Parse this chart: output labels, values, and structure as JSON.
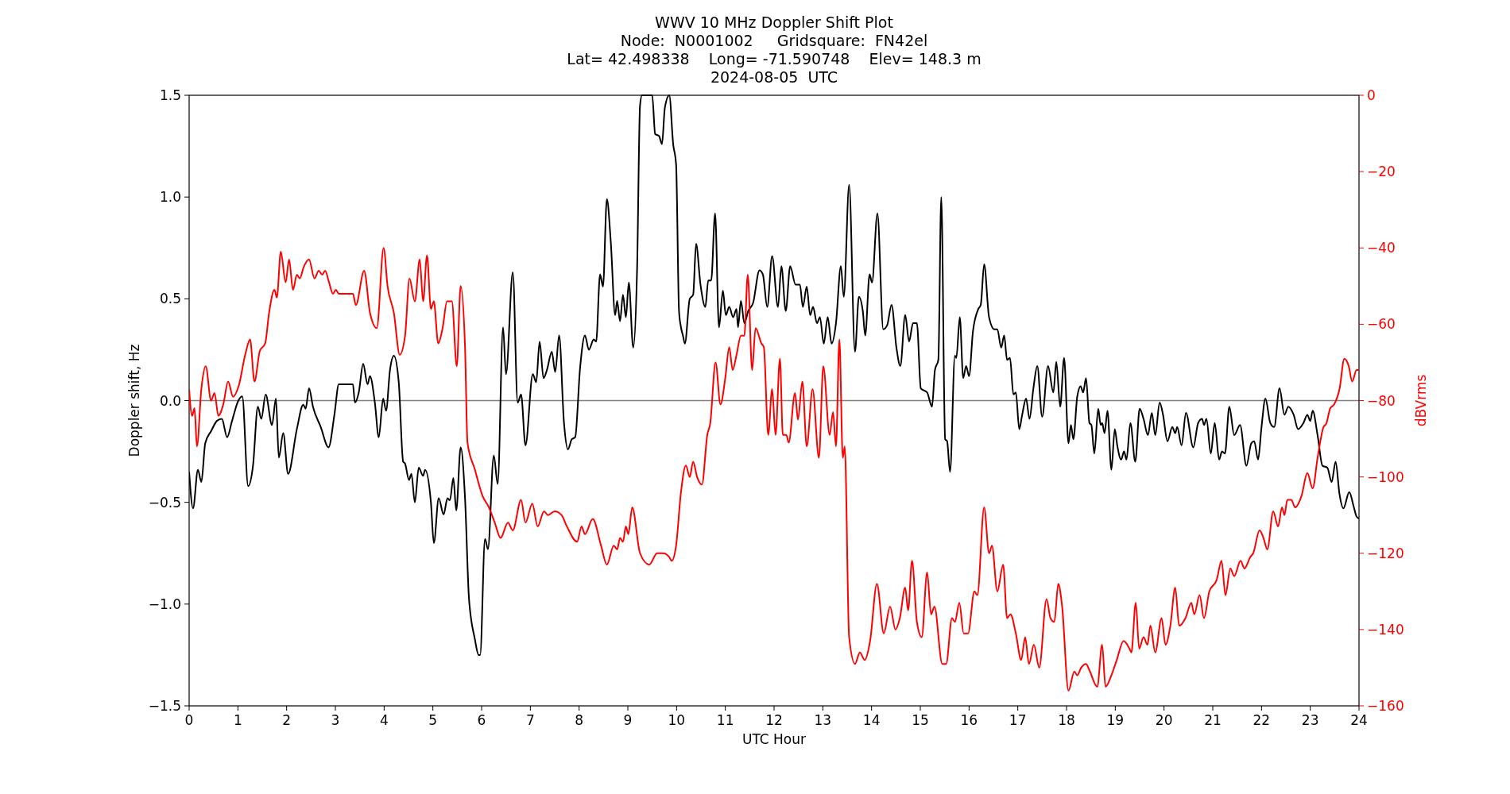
{
  "chart_data": {
    "type": "line",
    "title": "WWV 10 MHz Doppler Shift Plot",
    "subtitle": [
      "Node:  N0001002     Gridsquare:  FN42el",
      "Lat= 42.498338    Long= -71.590748    Elev= 148.3 m",
      "2024-08-05  UTC"
    ],
    "xlabel": "UTC Hour",
    "ylabel": "Doppler shift, Hz",
    "y2label": "dBVrms",
    "xlim": [
      0,
      24
    ],
    "xticks": [
      0,
      1,
      2,
      3,
      4,
      5,
      6,
      7,
      8,
      9,
      10,
      11,
      12,
      13,
      14,
      15,
      16,
      17,
      18,
      19,
      20,
      21,
      22,
      23,
      24
    ],
    "ylim": [
      -1.5,
      1.5
    ],
    "yticks": [
      {
        "value": -1.5,
        "label": "−1.5"
      },
      {
        "value": -1.0,
        "label": "−1.0"
      },
      {
        "value": -0.5,
        "label": "−0.5"
      },
      {
        "value": 0,
        "label": "0.0"
      },
      {
        "value": 0.5,
        "label": "0.5"
      },
      {
        "value": 1.0,
        "label": "1.0"
      },
      {
        "value": 1.5,
        "label": "1.5"
      }
    ],
    "y2lim": [
      -160,
      0
    ],
    "y2ticks": [
      -160,
      -140,
      -120,
      -100,
      -80,
      -60,
      -40,
      -20,
      0
    ],
    "grid": false,
    "ref_lines": [
      {
        "axis": "y",
        "value": 0,
        "color": "#808080"
      }
    ],
    "series": [
      {
        "color": "#000000",
        "x": [
          0,
          0.08,
          0.18,
          0.25,
          0.33,
          0.45,
          0.57,
          0.67,
          0.78,
          0.88,
          1.01,
          1.09,
          1.21,
          1.31,
          1.41,
          1.48,
          1.57,
          1.7,
          1.78,
          1.84,
          1.93,
          2.03,
          2.21,
          2.34,
          2.39,
          2.46,
          2.54,
          2.7,
          2.86,
          2.98,
          3.07,
          3.36,
          3.4,
          3.48,
          3.57,
          3.66,
          3.71,
          3.81,
          3.89,
          3.98,
          4.04,
          4.12,
          4.2,
          4.3,
          4.39,
          4.43,
          4.51,
          4.56,
          4.63,
          4.71,
          4.8,
          4.84,
          4.96,
          5.02,
          5.12,
          5.22,
          5.3,
          5.35,
          5.42,
          5.48,
          5.57,
          5.66,
          5.74,
          5.86,
          5.94,
          5.97,
          6.07,
          6.13,
          6.25,
          6.33,
          6.44,
          6.5,
          6.64,
          6.74,
          6.81,
          6.9,
          7.05,
          7.12,
          7.19,
          7.27,
          7.34,
          7.44,
          7.51,
          7.59,
          7.69,
          7.77,
          7.85,
          7.92,
          8.02,
          8.12,
          8.2,
          8.3,
          8.35,
          8.43,
          8.49,
          8.57,
          8.65,
          8.74,
          8.78,
          8.84,
          8.9,
          8.96,
          9.02,
          9.11,
          9.19,
          9.25,
          9.29,
          9.5,
          9.56,
          9.64,
          9.7,
          9.76,
          9.85,
          9.93,
          9.99,
          10.05,
          10.09,
          10.13,
          10.17,
          10.27,
          10.34,
          10.4,
          10.49,
          10.59,
          10.65,
          10.71,
          10.79,
          10.87,
          10.95,
          11.01,
          11.08,
          11.16,
          11.23,
          11.26,
          11.32,
          11.39,
          11.47,
          11.57,
          11.7,
          11.77,
          11.86,
          11.96,
          12.08,
          12.15,
          12.24,
          12.33,
          12.44,
          12.53,
          12.59,
          12.67,
          12.74,
          12.8,
          12.88,
          12.94,
          13.02,
          13.1,
          13.18,
          13.27,
          13.37,
          13.43,
          13.54,
          13.66,
          13.74,
          13.82,
          13.87,
          13.96,
          14.01,
          14.12,
          14.24,
          14.32,
          14.41,
          14.51,
          14.59,
          14.69,
          14.77,
          14.85,
          14.93,
          15.01,
          15.14,
          15.24,
          15.3,
          15.37,
          15.43,
          15.51,
          15.55,
          15.61,
          15.71,
          15.74,
          15.81,
          15.88,
          15.94,
          16,
          16.08,
          16.19,
          16.24,
          16.31,
          16.41,
          16.52,
          16.58,
          16.66,
          16.72,
          16.78,
          16.84,
          16.91,
          16.96,
          17.03,
          17.09,
          17.17,
          17.24,
          17.32,
          17.4,
          17.5,
          17.62,
          17.73,
          17.79,
          17.87,
          17.95,
          18.04,
          18.09,
          18.14,
          18.22,
          18.29,
          18.34,
          18.4,
          18.47,
          18.51,
          18.57,
          18.65,
          18.7,
          18.73,
          18.78,
          18.84,
          18.92,
          18.99,
          19.04,
          19.12,
          19.18,
          19.23,
          19.31,
          19.41,
          19.5,
          19.58,
          19.67,
          19.75,
          19.82,
          19.91,
          19.98,
          20.07,
          20.17,
          20.23,
          20.27,
          20.36,
          20.45,
          20.6,
          20.7,
          20.78,
          20.82,
          20.87,
          20.96,
          21.04,
          21.13,
          21.19,
          21.25,
          21.34,
          21.44,
          21.56,
          21.69,
          21.79,
          21.85,
          21.93,
          22,
          22.08,
          22.18,
          22.26,
          22.37,
          22.47,
          22.55,
          22.66,
          22.75,
          22.86,
          22.94,
          23,
          23.05,
          23.15,
          23.25,
          23.35,
          23.44,
          23.52,
          23.6,
          23.68,
          23.8,
          23.89,
          23.95,
          24
        ],
        "values": [
          -0.35,
          -0.53,
          -0.34,
          -0.4,
          -0.21,
          -0.15,
          -0.1,
          -0.09,
          -0.18,
          -0.1,
          0,
          0.02,
          -0.42,
          -0.32,
          -0.03,
          -0.09,
          0.03,
          -0.12,
          0.01,
          -0.28,
          -0.16,
          -0.36,
          -0.14,
          -0.02,
          -0.04,
          0.06,
          -0.03,
          -0.13,
          -0.23,
          -0.07,
          0.08,
          0.08,
          -0.01,
          0.04,
          0.18,
          0.08,
          0.12,
          -0.01,
          -0.18,
          0.01,
          -0.05,
          0.15,
          0.22,
          0.09,
          -0.3,
          -0.31,
          -0.39,
          -0.36,
          -0.5,
          -0.33,
          -0.37,
          -0.34,
          -0.5,
          -0.7,
          -0.48,
          -0.56,
          -0.48,
          -0.49,
          -0.38,
          -0.54,
          -0.23,
          -0.48,
          -0.97,
          -1.17,
          -1.25,
          -1.25,
          -0.68,
          -0.73,
          -0.27,
          -0.41,
          0.36,
          0.13,
          0.63,
          -0.01,
          0.03,
          -0.22,
          0.13,
          0.09,
          0.29,
          0.11,
          0.15,
          0.24,
          0.14,
          0.32,
          -0.11,
          -0.24,
          -0.19,
          -0.18,
          0.16,
          0.32,
          0.25,
          0.3,
          0.29,
          0.62,
          0.56,
          0.99,
          0.78,
          0.42,
          0.49,
          0.39,
          0.52,
          0.41,
          0.58,
          0.26,
          0.65,
          1.45,
          1.5,
          1.5,
          1.31,
          1.3,
          1.26,
          1.44,
          1.5,
          1.26,
          1.16,
          0.44,
          0.36,
          0.32,
          0.28,
          0.5,
          0.52,
          0.77,
          0.57,
          0.46,
          0.59,
          0.59,
          0.92,
          0.36,
          0.54,
          0.42,
          0.46,
          0.41,
          0.45,
          0.36,
          0.49,
          0.38,
          0.44,
          0.48,
          0.64,
          0.62,
          0.46,
          0.71,
          0.46,
          0.66,
          0.44,
          0.66,
          0.57,
          0.57,
          0.46,
          0.56,
          0.42,
          0.46,
          0.38,
          0.41,
          0.28,
          0.41,
          0.28,
          0.38,
          0.66,
          0.51,
          1.06,
          0.24,
          0.51,
          0.44,
          0.32,
          0.62,
          0.58,
          0.92,
          0.35,
          0.37,
          0.47,
          0.26,
          0.17,
          0.42,
          0.29,
          0.38,
          0.38,
          0.06,
          0.04,
          -0.03,
          0.15,
          0.2,
          1.0,
          -0.19,
          -0.2,
          -0.35,
          0.22,
          0.21,
          0.41,
          0.11,
          0.17,
          0.12,
          0.34,
          0.45,
          0.47,
          0.67,
          0.41,
          0.35,
          0.35,
          0.26,
          0.32,
          0.2,
          0.21,
          0.03,
          0.04,
          -0.14,
          -0.07,
          0.01,
          -0.09,
          0.06,
          0.17,
          -0.08,
          0.17,
          0.04,
          0.19,
          -0.03,
          0.21,
          -0.21,
          -0.12,
          -0.19,
          0.02,
          0.07,
          0.04,
          0.11,
          -0.11,
          -0.12,
          -0.26,
          -0.04,
          -0.12,
          -0.11,
          -0.16,
          -0.05,
          -0.34,
          -0.14,
          -0.22,
          -0.29,
          -0.25,
          -0.29,
          -0.11,
          -0.3,
          -0.04,
          -0.09,
          -0.17,
          -0.06,
          -0.17,
          -0.01,
          -0.07,
          -0.2,
          -0.13,
          -0.16,
          -0.13,
          -0.22,
          -0.06,
          -0.23,
          -0.11,
          -0.09,
          -0.12,
          -0.09,
          -0.26,
          -0.11,
          -0.29,
          -0.25,
          -0.26,
          -0.03,
          -0.17,
          -0.12,
          -0.32,
          -0.21,
          -0.2,
          -0.29,
          -0.13,
          0.01,
          -0.11,
          -0.13,
          0.06,
          -0.07,
          -0.03,
          -0.07,
          -0.14,
          -0.11,
          -0.07,
          -0.1,
          -0.05,
          -0.17,
          -0.32,
          -0.33,
          -0.4,
          -0.3,
          -0.46,
          -0.53,
          -0.45,
          -0.52,
          -0.57,
          -0.58
        ]
      },
      {
        "color": "#ff0000",
        "axis": "y2",
        "x": [
          0,
          0.06,
          0.11,
          0.16,
          0.25,
          0.34,
          0.45,
          0.52,
          0.6,
          0.7,
          0.8,
          0.9,
          1.02,
          1.15,
          1.25,
          1.34,
          1.45,
          1.56,
          1.64,
          1.75,
          1.8,
          1.88,
          1.98,
          2.05,
          2.13,
          2.21,
          2.27,
          2.35,
          2.46,
          2.57,
          2.66,
          2.73,
          2.79,
          2.87,
          2.95,
          3.01,
          3.07,
          3.36,
          3.42,
          3.59,
          3.71,
          3.85,
          3.99,
          4.07,
          4.2,
          4.32,
          4.43,
          4.52,
          4.63,
          4.73,
          4.8,
          4.88,
          4.96,
          5.02,
          5.11,
          5.2,
          5.29,
          5.35,
          5.39,
          5.49,
          5.57,
          5.66,
          5.71,
          5.86,
          6.02,
          6.15,
          6.27,
          6.39,
          6.54,
          6.64,
          6.81,
          6.9,
          7.04,
          7.15,
          7.28,
          7.36,
          7.5,
          7.64,
          7.75,
          7.96,
          8.05,
          8.12,
          8.28,
          8.45,
          8.57,
          8.71,
          8.78,
          8.84,
          8.9,
          8.96,
          9.01,
          9.09,
          9.25,
          9.44,
          9.6,
          9.72,
          9.85,
          9.9,
          9.99,
          10.09,
          10.19,
          10.27,
          10.34,
          10.42,
          10.52,
          10.63,
          10.69,
          10.8,
          10.9,
          11,
          11.08,
          11.15,
          11.23,
          11.32,
          11.39,
          11.46,
          11.55,
          11.62,
          11.74,
          11.79,
          11.88,
          11.96,
          12.03,
          12.12,
          12.18,
          12.25,
          12.3,
          12.43,
          12.49,
          12.58,
          12.67,
          12.79,
          12.92,
          13.01,
          13.14,
          13.21,
          13.27,
          13.34,
          13.41,
          13.45,
          13.54,
          13.66,
          13.76,
          13.86,
          13.97,
          14.11,
          14.25,
          14.38,
          14.49,
          14.58,
          14.69,
          14.75,
          14.83,
          14.93,
          15.03,
          15.14,
          15.22,
          15.29,
          15.45,
          15.53,
          15.65,
          15.71,
          15.8,
          15.89,
          15.98,
          16.11,
          16.17,
          16.31,
          16.41,
          16.47,
          16.58,
          16.7,
          16.78,
          16.85,
          16.96,
          17.07,
          17.15,
          17.23,
          17.33,
          17.44,
          17.59,
          17.67,
          17.75,
          17.83,
          17.91,
          18.04,
          18.16,
          18.22,
          18.3,
          18.4,
          18.48,
          18.63,
          18.73,
          18.8,
          18.92,
          19.03,
          19.17,
          19.29,
          19.33,
          19.42,
          19.49,
          19.58,
          19.66,
          19.72,
          19.82,
          19.95,
          20.03,
          20.13,
          20.23,
          20.31,
          20.44,
          20.56,
          20.62,
          20.73,
          20.82,
          20.93,
          21.08,
          21.18,
          21.26,
          21.36,
          21.44,
          21.57,
          21.65,
          21.77,
          21.83,
          21.96,
          22.04,
          22.12,
          22.24,
          22.34,
          22.42,
          22.47,
          22.53,
          22.61,
          22.69,
          22.82,
          22.94,
          23.05,
          23.15,
          23.27,
          23.33,
          23.41,
          23.49,
          23.6,
          23.7,
          23.79,
          23.86,
          23.95,
          24
        ],
        "values": [
          -77,
          -84,
          -82,
          -92,
          -77,
          -71,
          -80,
          -78,
          -84,
          -81,
          -75,
          -79,
          -76,
          -68,
          -64,
          -75,
          -67,
          -65,
          -57,
          -51,
          -53,
          -41,
          -49,
          -43,
          -51,
          -47,
          -48,
          -45,
          -43,
          -48,
          -46,
          -47,
          -46,
          -49,
          -52,
          -51,
          -52,
          -52,
          -55,
          -46,
          -57,
          -61,
          -40,
          -50,
          -57,
          -68,
          -63,
          -48,
          -54,
          -43,
          -54,
          -42,
          -56,
          -54,
          -65,
          -61,
          -54,
          -54,
          -54,
          -71,
          -50,
          -66,
          -91,
          -98,
          -105,
          -108,
          -112,
          -116,
          -112,
          -114,
          -106,
          -112,
          -107,
          -113,
          -109,
          -110,
          -109,
          -110,
          -113,
          -117,
          -113,
          -115,
          -111,
          -118,
          -123,
          -118,
          -119,
          -116,
          -117,
          -113,
          -115,
          -108,
          -120,
          -123,
          -120,
          -120,
          -121,
          -122,
          -118,
          -104,
          -97,
          -100,
          -96,
          -100,
          -102,
          -89,
          -86,
          -70,
          -81,
          -74,
          -66,
          -72,
          -68,
          -63,
          -63,
          -47,
          -72,
          -61,
          -65,
          -66,
          -89,
          -77,
          -89,
          -69,
          -89,
          -89,
          -91,
          -78,
          -85,
          -75,
          -92,
          -77,
          -95,
          -71,
          -89,
          -83,
          -92,
          -64,
          -95,
          -92,
          -142,
          -149,
          -146,
          -148,
          -143,
          -128,
          -141,
          -134,
          -140,
          -137,
          -129,
          -135,
          -122,
          -138,
          -142,
          -125,
          -136,
          -134,
          -149,
          -149,
          -137,
          -138,
          -133,
          -141,
          -141,
          -130,
          -131,
          -108,
          -120,
          -118,
          -130,
          -123,
          -137,
          -136,
          -141,
          -148,
          -142,
          -149,
          -144,
          -150,
          -132,
          -137,
          -138,
          -128,
          -134,
          -156,
          -151,
          -152,
          -150,
          -149,
          -151,
          -155,
          -144,
          -155,
          -152,
          -148,
          -143,
          -145,
          -146,
          -133,
          -145,
          -142,
          -144,
          -139,
          -146,
          -137,
          -144,
          -139,
          -129,
          -139,
          -137,
          -133,
          -136,
          -131,
          -137,
          -130,
          -127,
          -122,
          -131,
          -124,
          -126,
          -122,
          -124,
          -121,
          -120,
          -114,
          -116,
          -119,
          -109,
          -113,
          -108,
          -110,
          -106,
          -106,
          -108,
          -105,
          -99,
          -103,
          -95,
          -87,
          -86,
          -82,
          -81,
          -77,
          -69,
          -71,
          -75,
          -72,
          -72
        ]
      }
    ]
  }
}
